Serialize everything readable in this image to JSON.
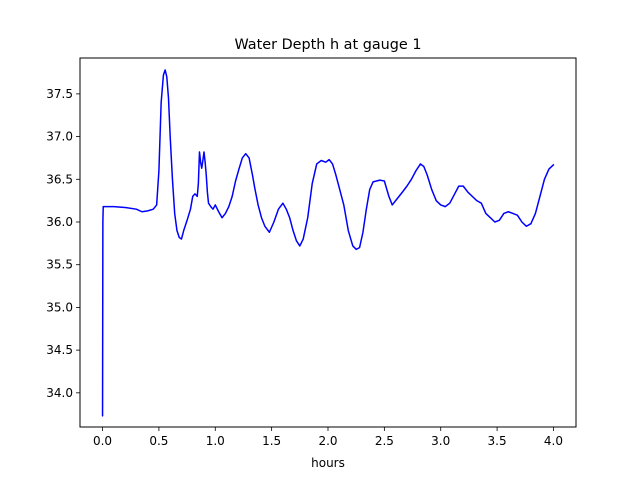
{
  "chart_data": {
    "type": "line",
    "title": "Water Depth h at gauge 1",
    "xlabel": "hours",
    "ylabel": "",
    "xlim": [
      -0.2,
      4.2
    ],
    "ylim": [
      33.6,
      37.92
    ],
    "xticks": [
      0.0,
      0.5,
      1.0,
      1.5,
      2.0,
      2.5,
      3.0,
      3.5,
      4.0
    ],
    "xtick_labels": [
      "0.0",
      "0.5",
      "1.0",
      "1.5",
      "2.0",
      "2.5",
      "3.0",
      "3.5",
      "4.0"
    ],
    "yticks": [
      34.0,
      34.5,
      35.0,
      35.5,
      36.0,
      36.5,
      37.0,
      37.5
    ],
    "ytick_labels": [
      "34.0",
      "34.5",
      "35.0",
      "35.5",
      "36.0",
      "36.5",
      "37.0",
      "37.5"
    ],
    "grid": false,
    "legend": "none",
    "series": [
      {
        "color": "#0000ff",
        "x": [
          0.0,
          0.003,
          0.006,
          0.01,
          0.1,
          0.2,
          0.3,
          0.35,
          0.4,
          0.45,
          0.48,
          0.5,
          0.52,
          0.54,
          0.555,
          0.57,
          0.585,
          0.6,
          0.62,
          0.64,
          0.66,
          0.68,
          0.7,
          0.72,
          0.75,
          0.78,
          0.8,
          0.82,
          0.84,
          0.85,
          0.86,
          0.87,
          0.88,
          0.89,
          0.9,
          0.91,
          0.92,
          0.93,
          0.94,
          0.96,
          0.98,
          1.0,
          1.03,
          1.06,
          1.09,
          1.12,
          1.15,
          1.18,
          1.21,
          1.24,
          1.27,
          1.3,
          1.33,
          1.35,
          1.38,
          1.41,
          1.44,
          1.48,
          1.52,
          1.56,
          1.6,
          1.63,
          1.66,
          1.69,
          1.72,
          1.75,
          1.78,
          1.82,
          1.86,
          1.9,
          1.94,
          1.98,
          2.01,
          2.04,
          2.07,
          2.1,
          2.14,
          2.18,
          2.22,
          2.25,
          2.28,
          2.31,
          2.34,
          2.37,
          2.4,
          2.43,
          2.46,
          2.5,
          2.54,
          2.57,
          2.6,
          2.63,
          2.66,
          2.7,
          2.74,
          2.78,
          2.82,
          2.85,
          2.88,
          2.92,
          2.96,
          3.0,
          3.04,
          3.08,
          3.12,
          3.16,
          3.2,
          3.24,
          3.28,
          3.32,
          3.36,
          3.4,
          3.44,
          3.48,
          3.52,
          3.56,
          3.6,
          3.64,
          3.68,
          3.72,
          3.76,
          3.8,
          3.84,
          3.88,
          3.92,
          3.96,
          4.0
        ],
        "y": [
          33.73,
          36.0,
          36.18,
          36.18,
          36.18,
          36.17,
          36.15,
          36.12,
          36.13,
          36.15,
          36.2,
          36.6,
          37.4,
          37.72,
          37.78,
          37.7,
          37.45,
          37.0,
          36.5,
          36.1,
          35.9,
          35.82,
          35.8,
          35.9,
          36.02,
          36.15,
          36.3,
          36.33,
          36.3,
          36.45,
          36.82,
          36.7,
          36.63,
          36.72,
          36.82,
          36.7,
          36.55,
          36.35,
          36.22,
          36.18,
          36.15,
          36.2,
          36.12,
          36.05,
          36.1,
          36.18,
          36.3,
          36.48,
          36.62,
          36.75,
          36.8,
          36.75,
          36.55,
          36.4,
          36.2,
          36.05,
          35.95,
          35.88,
          36.0,
          36.15,
          36.22,
          36.15,
          36.05,
          35.9,
          35.78,
          35.72,
          35.8,
          36.05,
          36.45,
          36.68,
          36.72,
          36.7,
          36.73,
          36.68,
          36.55,
          36.4,
          36.2,
          35.9,
          35.72,
          35.68,
          35.7,
          35.88,
          36.15,
          36.38,
          36.47,
          36.48,
          36.49,
          36.48,
          36.3,
          36.2,
          36.25,
          36.3,
          36.35,
          36.42,
          36.5,
          36.6,
          36.68,
          36.65,
          36.55,
          36.38,
          36.25,
          36.2,
          36.18,
          36.22,
          36.32,
          36.42,
          36.42,
          36.35,
          36.3,
          36.25,
          36.22,
          36.1,
          36.05,
          36.0,
          36.02,
          36.1,
          36.12,
          36.1,
          36.08,
          36.0,
          35.95,
          35.98,
          36.1,
          36.3,
          36.5,
          36.62,
          36.67
        ]
      }
    ]
  }
}
